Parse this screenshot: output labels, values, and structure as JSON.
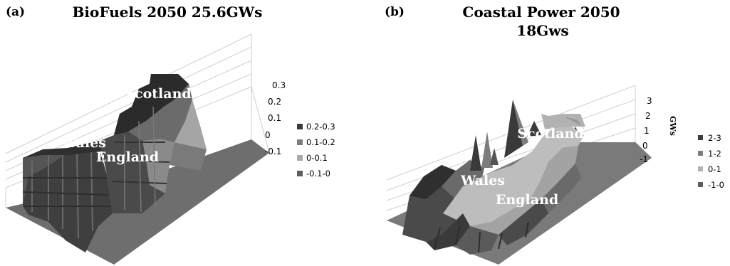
{
  "chart_data": [
    {
      "panel": "(a)",
      "type": "surface",
      "title": "BioFuels 2050 25.6GWs",
      "zlabel": "",
      "z_ticks": [
        "0.3",
        "0.2",
        "0.1",
        "0",
        "-0.1"
      ],
      "zlim": [
        -0.1,
        0.3
      ],
      "legend_position": "right",
      "legend": [
        {
          "label": "0.2-0.3",
          "color": "#3a3a3a"
        },
        {
          "label": "0.1-0.2",
          "color": "#7c7c7c"
        },
        {
          "label": "0-0.1",
          "color": "#a9a9a9"
        },
        {
          "label": "-0.1-0",
          "color": "#5e5e5e"
        }
      ],
      "region_labels": [
        "Scotland",
        "Wales",
        "England"
      ]
    },
    {
      "panel": "(b)",
      "type": "surface",
      "title_lines": [
        "Coastal Power 2050",
        "18Gws"
      ],
      "zlabel": "GWs",
      "z_ticks": [
        "3",
        "2",
        "1",
        "0",
        "-1"
      ],
      "zlim": [
        -1,
        3
      ],
      "legend_position": "right",
      "legend": [
        {
          "label": "2-3",
          "color": "#3a3a3a"
        },
        {
          "label": "1-2",
          "color": "#7c7c7c"
        },
        {
          "label": "0-1",
          "color": "#b2b2b2"
        },
        {
          "label": "-1-0",
          "color": "#5e5e5e"
        }
      ],
      "region_labels": [
        "Scotland",
        "Wales",
        "England"
      ]
    }
  ]
}
